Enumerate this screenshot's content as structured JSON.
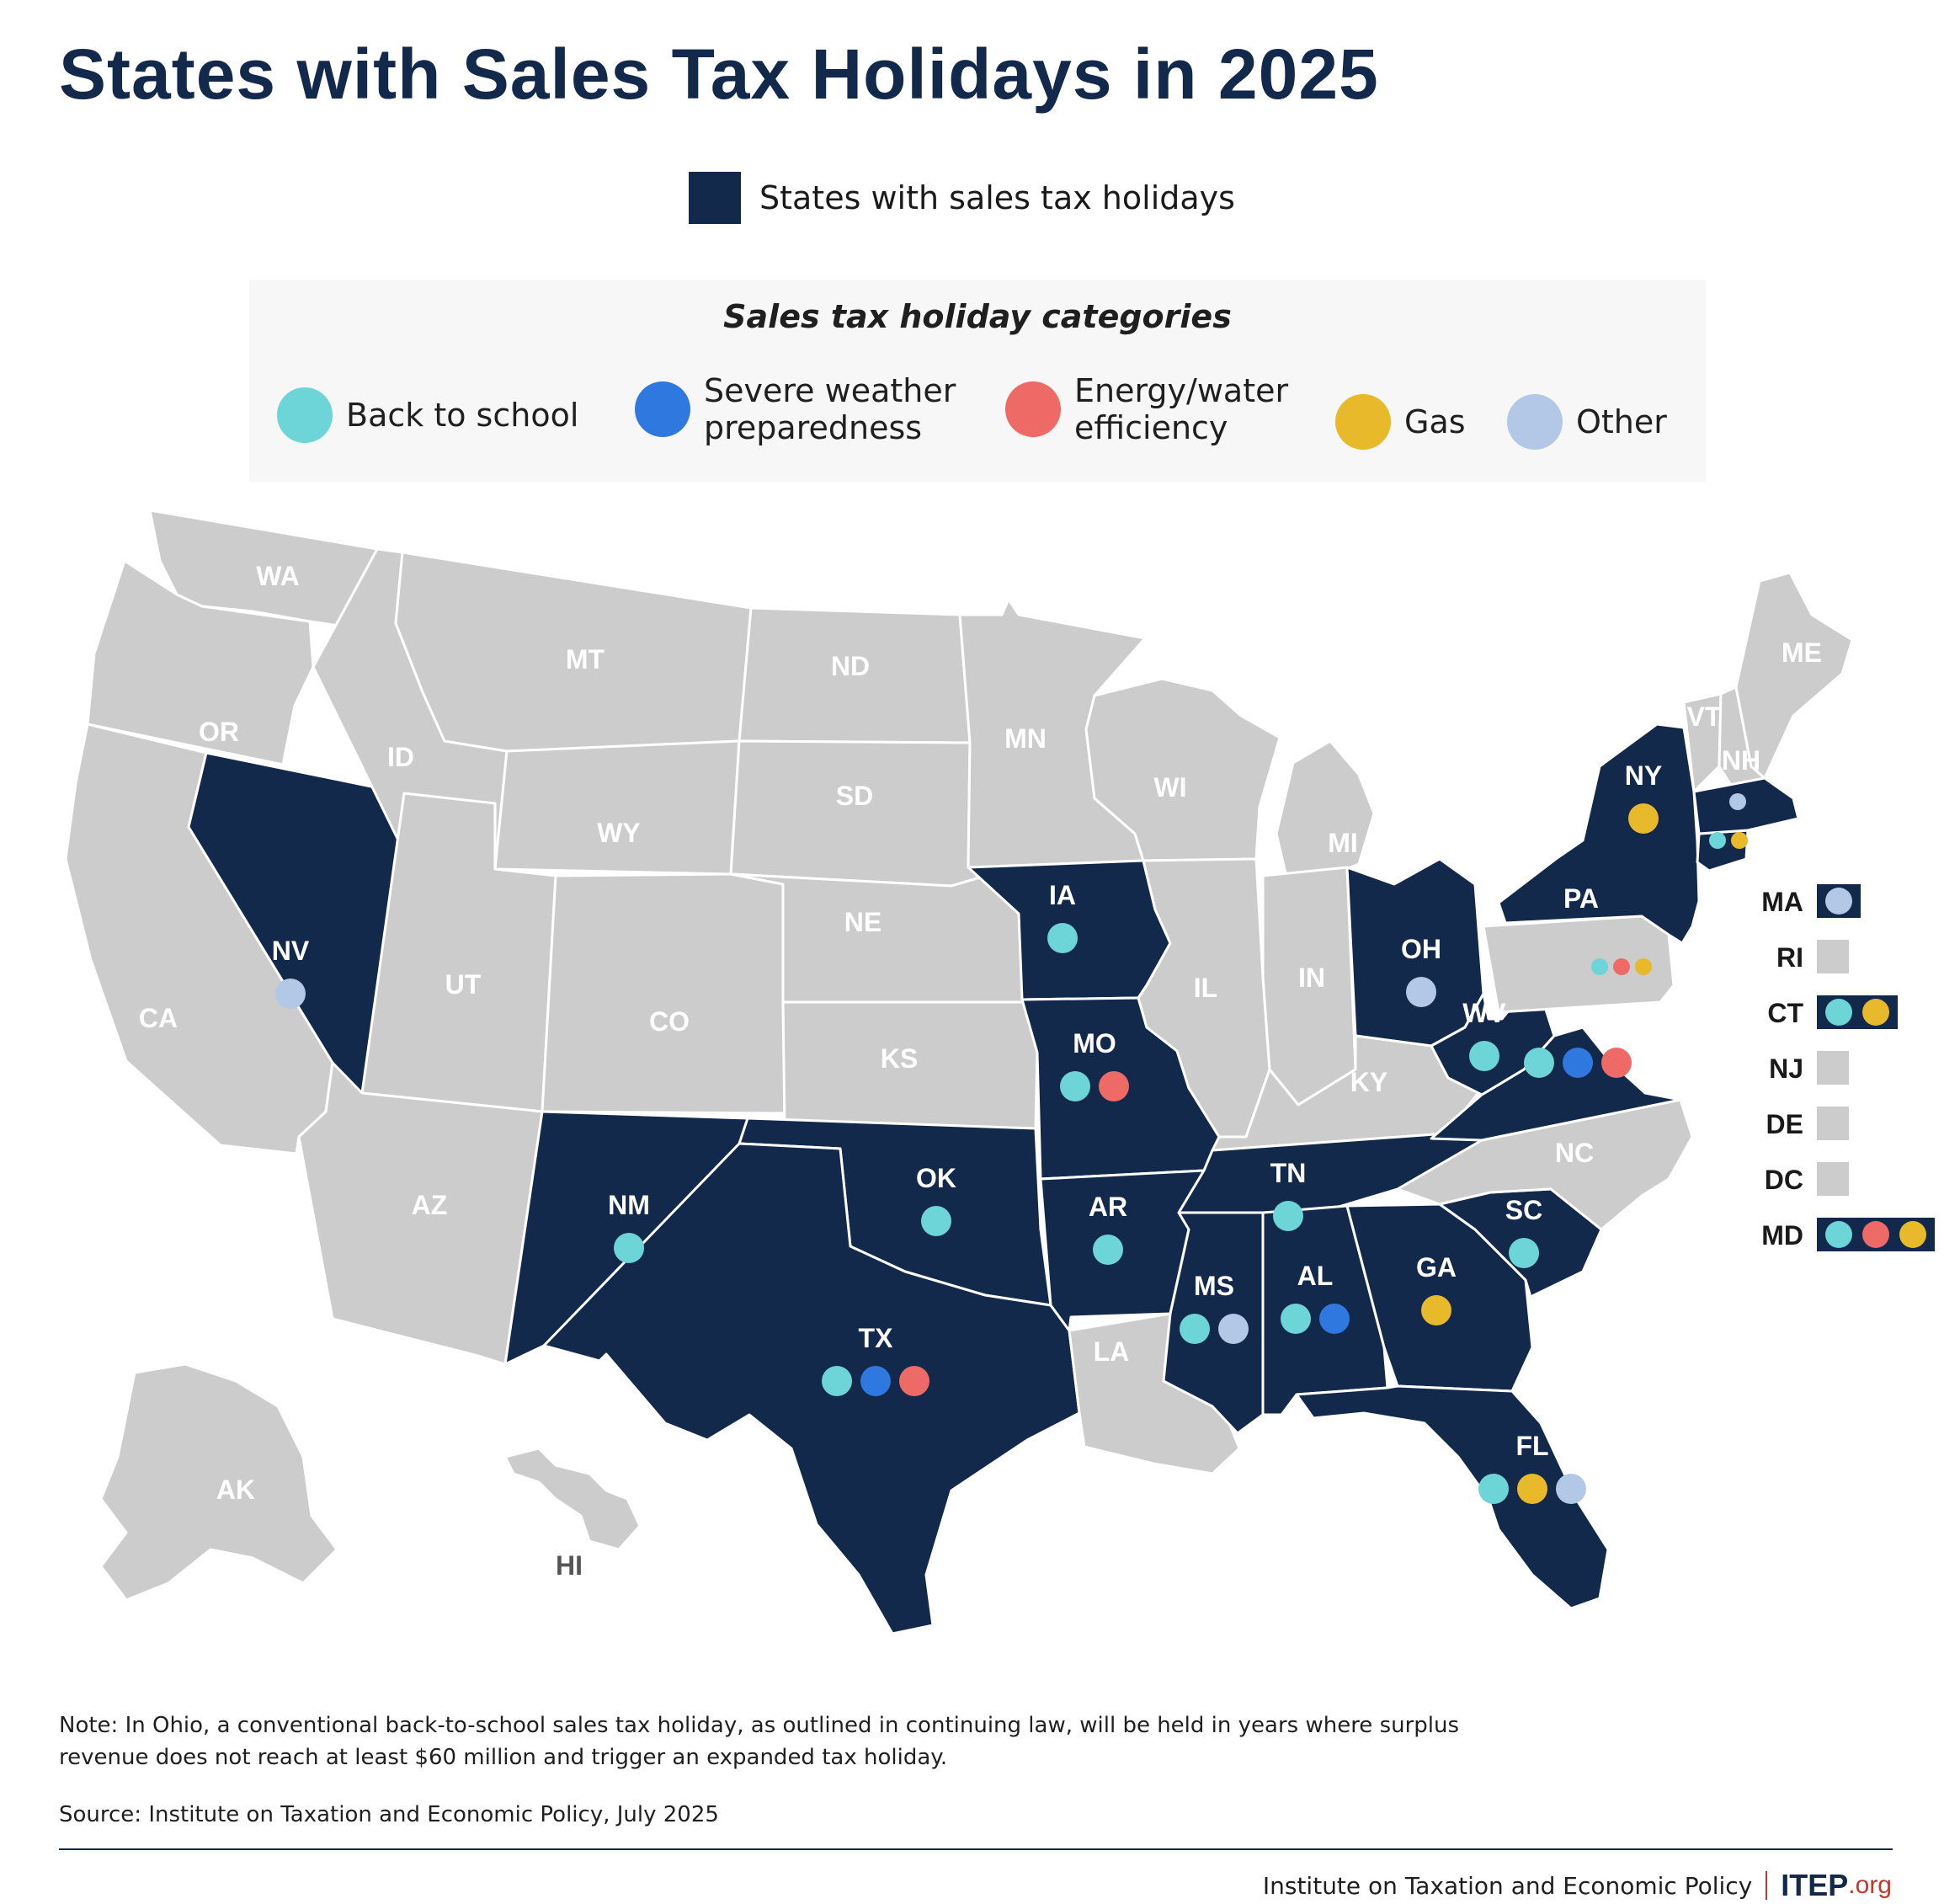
{
  "title": "States with Sales Tax Holidays in 2025",
  "legend": {
    "label": "States with sales tax holidays",
    "color": "#13294b"
  },
  "categories_box": {
    "title": "Sales tax holiday categories",
    "items": [
      {
        "key": "school",
        "label": "Back to school",
        "color": "#6dd4d8"
      },
      {
        "key": "weather",
        "label": "Severe weather\npreparedness",
        "color": "#2f78e0"
      },
      {
        "key": "energy",
        "label": "Energy/water\nefficiency",
        "color": "#ee6a66"
      },
      {
        "key": "gas",
        "label": "Gas",
        "color": "#e8b92a"
      },
      {
        "key": "other",
        "label": "Other",
        "color": "#b3c7e6"
      }
    ]
  },
  "colors": {
    "holiday": "#13294b",
    "no_holiday": "#cccccc",
    "border": "#ffffff"
  },
  "states": [
    {
      "abbr": "WA",
      "holiday": false,
      "categories": []
    },
    {
      "abbr": "OR",
      "holiday": false,
      "categories": []
    },
    {
      "abbr": "CA",
      "holiday": false,
      "categories": []
    },
    {
      "abbr": "NV",
      "holiday": true,
      "categories": [
        "other"
      ]
    },
    {
      "abbr": "ID",
      "holiday": false,
      "categories": []
    },
    {
      "abbr": "MT",
      "holiday": false,
      "categories": []
    },
    {
      "abbr": "WY",
      "holiday": false,
      "categories": []
    },
    {
      "abbr": "UT",
      "holiday": false,
      "categories": []
    },
    {
      "abbr": "AZ",
      "holiday": false,
      "categories": []
    },
    {
      "abbr": "CO",
      "holiday": false,
      "categories": []
    },
    {
      "abbr": "NM",
      "holiday": true,
      "categories": [
        "school"
      ]
    },
    {
      "abbr": "ND",
      "holiday": false,
      "categories": []
    },
    {
      "abbr": "SD",
      "holiday": false,
      "categories": []
    },
    {
      "abbr": "NE",
      "holiday": false,
      "categories": []
    },
    {
      "abbr": "KS",
      "holiday": false,
      "categories": []
    },
    {
      "abbr": "OK",
      "holiday": true,
      "categories": [
        "school"
      ]
    },
    {
      "abbr": "TX",
      "holiday": true,
      "categories": [
        "school",
        "weather",
        "energy"
      ]
    },
    {
      "abbr": "MN",
      "holiday": false,
      "categories": []
    },
    {
      "abbr": "IA",
      "holiday": true,
      "categories": [
        "school"
      ]
    },
    {
      "abbr": "MO",
      "holiday": true,
      "categories": [
        "school",
        "energy"
      ]
    },
    {
      "abbr": "AR",
      "holiday": true,
      "categories": [
        "school"
      ]
    },
    {
      "abbr": "LA",
      "holiday": false,
      "categories": []
    },
    {
      "abbr": "WI",
      "holiday": false,
      "categories": []
    },
    {
      "abbr": "IL",
      "holiday": false,
      "categories": []
    },
    {
      "abbr": "MI",
      "holiday": false,
      "categories": []
    },
    {
      "abbr": "IN",
      "holiday": false,
      "categories": []
    },
    {
      "abbr": "OH",
      "holiday": true,
      "categories": [
        "other"
      ]
    },
    {
      "abbr": "KY",
      "holiday": false,
      "categories": []
    },
    {
      "abbr": "TN",
      "holiday": true,
      "categories": [
        "school"
      ]
    },
    {
      "abbr": "MS",
      "holiday": true,
      "categories": [
        "school",
        "other"
      ]
    },
    {
      "abbr": "AL",
      "holiday": true,
      "categories": [
        "school",
        "weather"
      ]
    },
    {
      "abbr": "GA",
      "holiday": true,
      "categories": [
        "gas"
      ]
    },
    {
      "abbr": "FL",
      "holiday": true,
      "categories": [
        "school",
        "gas",
        "other"
      ]
    },
    {
      "abbr": "SC",
      "holiday": true,
      "categories": [
        "school"
      ]
    },
    {
      "abbr": "NC",
      "holiday": false,
      "categories": []
    },
    {
      "abbr": "VA",
      "holiday": true,
      "categories": [
        "school",
        "weather",
        "energy"
      ]
    },
    {
      "abbr": "WV",
      "holiday": true,
      "categories": [
        "school"
      ]
    },
    {
      "abbr": "PA",
      "holiday": false,
      "categories": []
    },
    {
      "abbr": "NY",
      "holiday": true,
      "categories": [
        "gas"
      ]
    },
    {
      "abbr": "VT",
      "holiday": false,
      "categories": []
    },
    {
      "abbr": "NH",
      "holiday": false,
      "categories": []
    },
    {
      "abbr": "ME",
      "holiday": false,
      "categories": []
    },
    {
      "abbr": "AK",
      "holiday": false,
      "categories": []
    },
    {
      "abbr": "HI",
      "holiday": false,
      "categories": []
    }
  ],
  "small_states": [
    {
      "abbr": "MA",
      "holiday": true,
      "categories": [
        "other"
      ]
    },
    {
      "abbr": "RI",
      "holiday": false,
      "categories": []
    },
    {
      "abbr": "CT",
      "holiday": true,
      "categories": [
        "school",
        "gas"
      ]
    },
    {
      "abbr": "NJ",
      "holiday": false,
      "categories": []
    },
    {
      "abbr": "DE",
      "holiday": false,
      "categories": []
    },
    {
      "abbr": "DC",
      "holiday": false,
      "categories": []
    },
    {
      "abbr": "MD",
      "holiday": true,
      "categories": [
        "school",
        "energy",
        "gas"
      ]
    }
  ],
  "note": "Note: In Ohio, a conventional back-to-school sales tax holiday, as outlined in continuing law, will be held in years where surplus revenue does not reach at least $60 million and trigger an expanded tax holiday.",
  "source": "Source: Institute on Taxation and Economic Policy, July 2025",
  "footer": {
    "org": "Institute on Taxation and Economic Policy",
    "brand": "ITEP",
    "brand_suffix": ".org"
  }
}
